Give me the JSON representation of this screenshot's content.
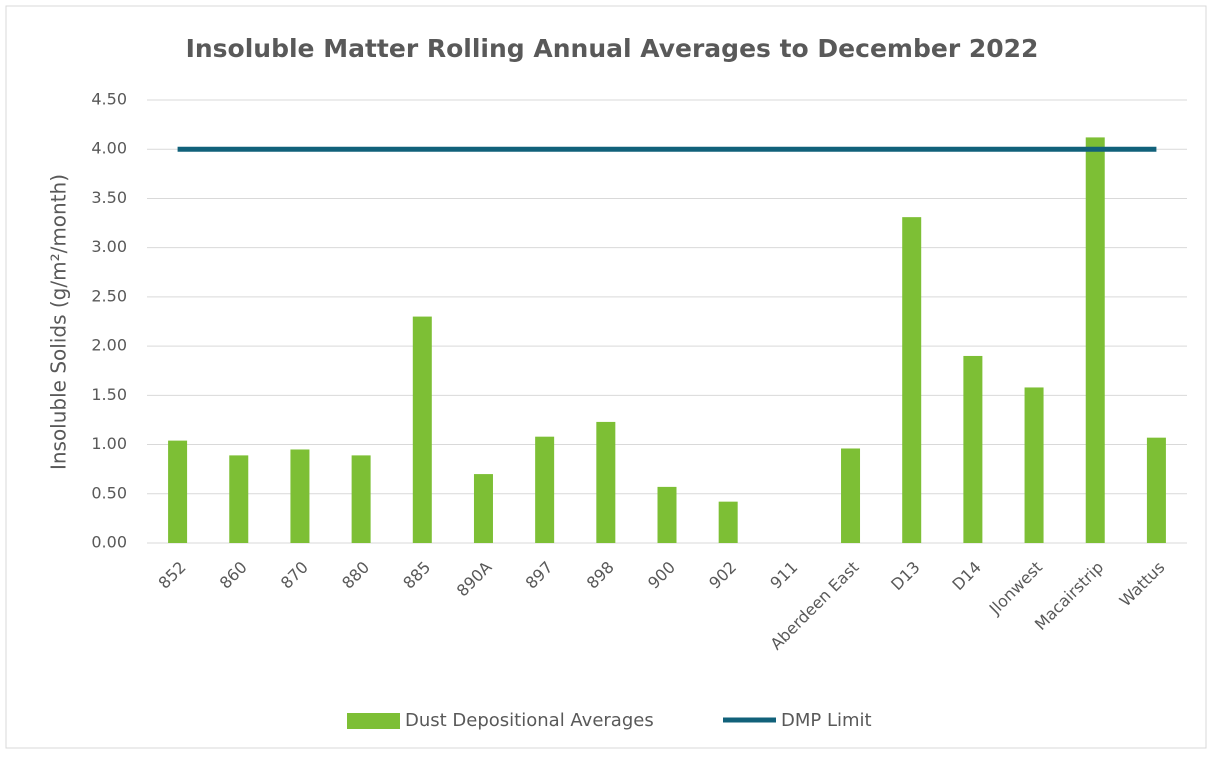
{
  "chart_data": {
    "type": "bar",
    "title": "Insoluble Matter Rolling Annual Averages to December 2022",
    "y_label": "Insoluble Solids (g/m²/month)",
    "categories": [
      "852",
      "860",
      "870",
      "880",
      "885",
      "890A",
      "897",
      "898",
      "900",
      "902",
      "911",
      "Aberdeen East",
      "D13",
      "D14",
      "Jlonwest",
      "Macairstrip",
      "Wattus"
    ],
    "series": [
      {
        "name": "Dust Depositional Averages",
        "type": "bar",
        "color": "#7dbf35",
        "values": [
          1.04,
          0.89,
          0.95,
          0.89,
          2.3,
          0.7,
          1.08,
          1.23,
          0.57,
          0.42,
          null,
          0.96,
          3.31,
          1.9,
          1.58,
          4.12,
          1.07
        ]
      },
      {
        "name": "DMP Limit",
        "type": "line",
        "color": "#11617a",
        "values": [
          4.0,
          4.0,
          4.0,
          4.0,
          4.0,
          4.0,
          4.0,
          4.0,
          4.0,
          4.0,
          4.0,
          4.0,
          4.0,
          4.0,
          4.0,
          4.0,
          4.0
        ]
      }
    ],
    "ylim": [
      0,
      4.5
    ],
    "yticks": [
      {
        "value": 0,
        "label": "0.00"
      },
      {
        "value": 0.5,
        "label": "0.50"
      },
      {
        "value": 1,
        "label": "1.00"
      },
      {
        "value": 1.5,
        "label": "1.50"
      },
      {
        "value": 2,
        "label": "2.00"
      },
      {
        "value": 2.5,
        "label": "2.50"
      },
      {
        "value": 3,
        "label": "3.00"
      },
      {
        "value": 3.5,
        "label": "3.50"
      },
      {
        "value": 4,
        "label": "4.00"
      },
      {
        "value": 4.5,
        "label": "4.50"
      }
    ],
    "grid": true,
    "legend": "bottom"
  }
}
